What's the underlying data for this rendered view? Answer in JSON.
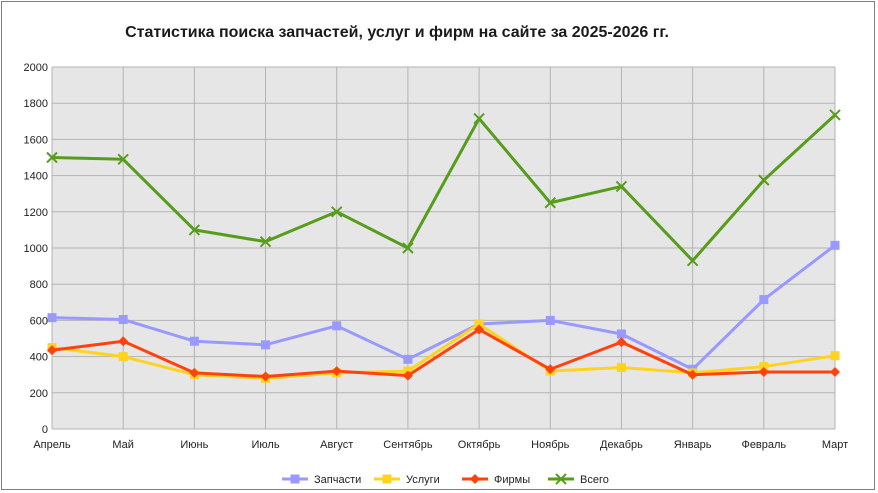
{
  "chart_data": {
    "type": "line",
    "title": "Статистика поиска запчастей, услуг и фирм на сайте за 2025-2026 гг.",
    "categories": [
      "Апрель",
      "Май",
      "Июнь",
      "Июль",
      "Август",
      "Сентябрь",
      "Октябрь",
      "Ноябрь",
      "Декабрь",
      "Январь",
      "Февраль",
      "Март"
    ],
    "ylim": [
      0,
      2000
    ],
    "yticks": [
      "0",
      "200",
      "400",
      "600",
      "800",
      "1000",
      "1200",
      "1400",
      "1600",
      "1800",
      "2000"
    ],
    "grid": true,
    "legend_position": "bottom",
    "series": [
      {
        "name": "Запчасти",
        "color": "#9999ff",
        "marker": "square",
        "values": [
          615,
          605,
          485,
          465,
          570,
          385,
          580,
          600,
          525,
          330,
          715,
          1015
        ]
      },
      {
        "name": "Услуги",
        "color": "#ffd320",
        "marker": "square",
        "values": [
          450,
          400,
          300,
          280,
          310,
          320,
          580,
          320,
          340,
          310,
          345,
          405
        ]
      },
      {
        "name": "Фирмы",
        "color": "#ff420e",
        "marker": "diamond",
        "values": [
          435,
          485,
          310,
          290,
          320,
          295,
          550,
          330,
          480,
          300,
          315,
          315
        ]
      },
      {
        "name": "Всего",
        "color": "#579d1c",
        "marker": "x",
        "values": [
          1500,
          1490,
          1100,
          1035,
          1200,
          1000,
          1715,
          1250,
          1340,
          930,
          1375,
          1735
        ]
      }
    ]
  }
}
